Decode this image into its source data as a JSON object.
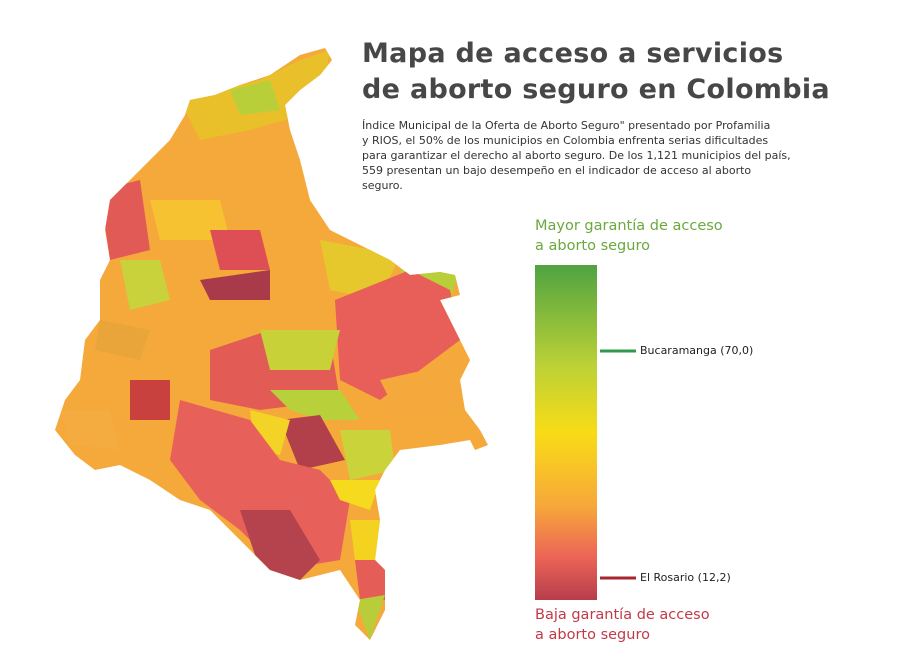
{
  "header": {
    "title_lines": [
      "Mapa de acceso a servicios",
      "de  aborto seguro en Colombia"
    ],
    "description_lines": [
      "Índice Municipal de la Oferta de Aborto Seguro\" presentado por Profamilia",
      "y RIOS, el 50% de los municipios en Colombia enfrenta serias dificultades",
      "para garantizar el derecho al aborto seguro. De los 1,121 municipios del país,",
      "559 presentan un bajo desempeño en el indicador de acceso al aborto",
      "seguro."
    ]
  },
  "legend": {
    "top_label_lines": [
      "Mayor garantía de acceso",
      "a aborto seguro"
    ],
    "bottom_label_lines": [
      "Baja garantía de acceso",
      "a aborto seguro"
    ],
    "markers": [
      {
        "label": "Bucaramanga (70,0)"
      },
      {
        "label": "El Rosario (12,2)"
      }
    ]
  }
}
